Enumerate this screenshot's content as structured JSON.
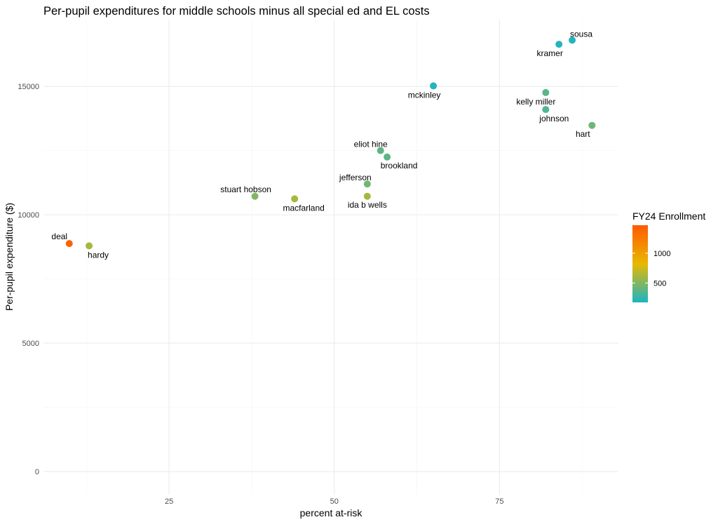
{
  "chart_data": {
    "type": "scatter",
    "title": "Per-pupil expenditures for middle schools minus all special ed and EL costs",
    "xlabel": "percent at-risk",
    "ylabel": "Per-pupil expenditure ($)",
    "xlim": [
      6,
      93
    ],
    "ylim": [
      -900,
      17600
    ],
    "x_ticks": [
      25,
      50,
      75
    ],
    "x_minor_ticks": [
      12.5,
      37.5,
      62.5,
      87.5
    ],
    "y_ticks": [
      0,
      5000,
      10000,
      15000
    ],
    "y_minor_ticks": [
      2500,
      7500,
      12500
    ],
    "grid": true,
    "points": [
      {
        "label": "deal",
        "x": 9.9,
        "y": 8880,
        "enrollment": 1420
      },
      {
        "label": "hardy",
        "x": 12.9,
        "y": 8790,
        "enrollment": 620
      },
      {
        "label": "stuart hobson",
        "x": 38,
        "y": 10720,
        "enrollment": 500
      },
      {
        "label": "macfarland",
        "x": 44,
        "y": 10620,
        "enrollment": 620
      },
      {
        "label": "jefferson",
        "x": 55,
        "y": 11200,
        "enrollment": 450
      },
      {
        "label": "ida b wells",
        "x": 55,
        "y": 10720,
        "enrollment": 620
      },
      {
        "label": "eliot hine",
        "x": 57,
        "y": 12500,
        "enrollment": 380
      },
      {
        "label": "brookland",
        "x": 58,
        "y": 12250,
        "enrollment": 380
      },
      {
        "label": "mckinley",
        "x": 65,
        "y": 15020,
        "enrollment": 210
      },
      {
        "label": "kramer",
        "x": 84,
        "y": 16640,
        "enrollment": 200
      },
      {
        "label": "sousa",
        "x": 86,
        "y": 16800,
        "enrollment": 200
      },
      {
        "label": "kelly miller",
        "x": 82,
        "y": 14760,
        "enrollment": 380
      },
      {
        "label": "johnson",
        "x": 82,
        "y": 14100,
        "enrollment": 350
      },
      {
        "label": "hart",
        "x": 89,
        "y": 13480,
        "enrollment": 430
      }
    ],
    "legend": {
      "title": "FY24 Enrollment",
      "placement": "right",
      "ticks": [
        500,
        1000
      ],
      "range": [
        175,
        1470
      ],
      "colors": [
        "#1ab5c4",
        "#e8b800",
        "#ff5a00"
      ]
    }
  }
}
